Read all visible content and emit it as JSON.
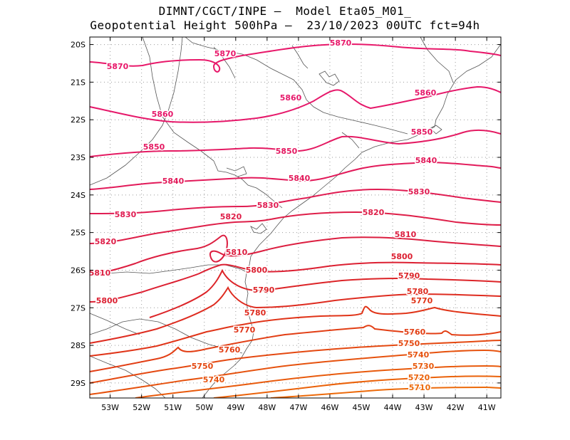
{
  "title": {
    "line1": "DIMNT/CGCT/INPE —  Model Eta05_M01_",
    "line2": "Geopotential Height 500hPa —  23/10/2023 00UTC fct=94h"
  },
  "map": {
    "lon_range": [
      -53.65,
      -40.55
    ],
    "lat_range": [
      -29.4,
      -19.8
    ],
    "lon_ticks": [
      "53W",
      "52W",
      "51W",
      "50W",
      "49W",
      "48W",
      "47W",
      "46W",
      "45W",
      "44W",
      "43W",
      "42W",
      "41W"
    ],
    "lat_ticks": [
      "20S",
      "21S",
      "22S",
      "23S",
      "24S",
      "25S",
      "26S",
      "27S",
      "28S",
      "29S"
    ]
  },
  "contours": [
    {
      "value": 5870,
      "color": "#e8186a",
      "labels": [
        "5870",
        "5870",
        "5870"
      ]
    },
    {
      "value": 5860,
      "color": "#e6186a",
      "labels": [
        "5860",
        "5860",
        "5860"
      ]
    },
    {
      "value": 5850,
      "color": "#e41a62",
      "labels": [
        "5850",
        "5850",
        "5850"
      ]
    },
    {
      "value": 5840,
      "color": "#e21a5a",
      "labels": [
        "5840",
        "5840",
        "5840"
      ]
    },
    {
      "value": 5830,
      "color": "#e01c52",
      "labels": [
        "5830",
        "5830",
        "5830"
      ]
    },
    {
      "value": 5820,
      "color": "#de1e48",
      "labels": [
        "5820",
        "5820",
        "5820"
      ]
    },
    {
      "value": 5810,
      "color": "#dc1e40",
      "labels": [
        "5810",
        "5810",
        "5810"
      ]
    },
    {
      "value": 5800,
      "color": "#dc2032",
      "labels": [
        "5800",
        "5800",
        "5800"
      ]
    },
    {
      "value": 5790,
      "color": "#dc2428",
      "labels": [
        "5790",
        "5790"
      ]
    },
    {
      "value": 5780,
      "color": "#de2c20",
      "labels": [
        "5780",
        "5780"
      ]
    },
    {
      "value": 5770,
      "color": "#e03418",
      "labels": [
        "5770",
        "5770"
      ]
    },
    {
      "value": 5760,
      "color": "#e23e14",
      "labels": [
        "5760",
        "5760"
      ]
    },
    {
      "value": 5750,
      "color": "#e44810",
      "labels": [
        "5750",
        "5750"
      ]
    },
    {
      "value": 5740,
      "color": "#e6520e",
      "labels": [
        "5740",
        "5740"
      ]
    },
    {
      "value": 5730,
      "color": "#e85a0c",
      "labels": [
        "5730"
      ]
    },
    {
      "value": 5720,
      "color": "#ea620a",
      "labels": [
        "5720"
      ]
    },
    {
      "value": 5710,
      "color": "#ec6a0a",
      "labels": [
        "5710"
      ]
    }
  ]
}
